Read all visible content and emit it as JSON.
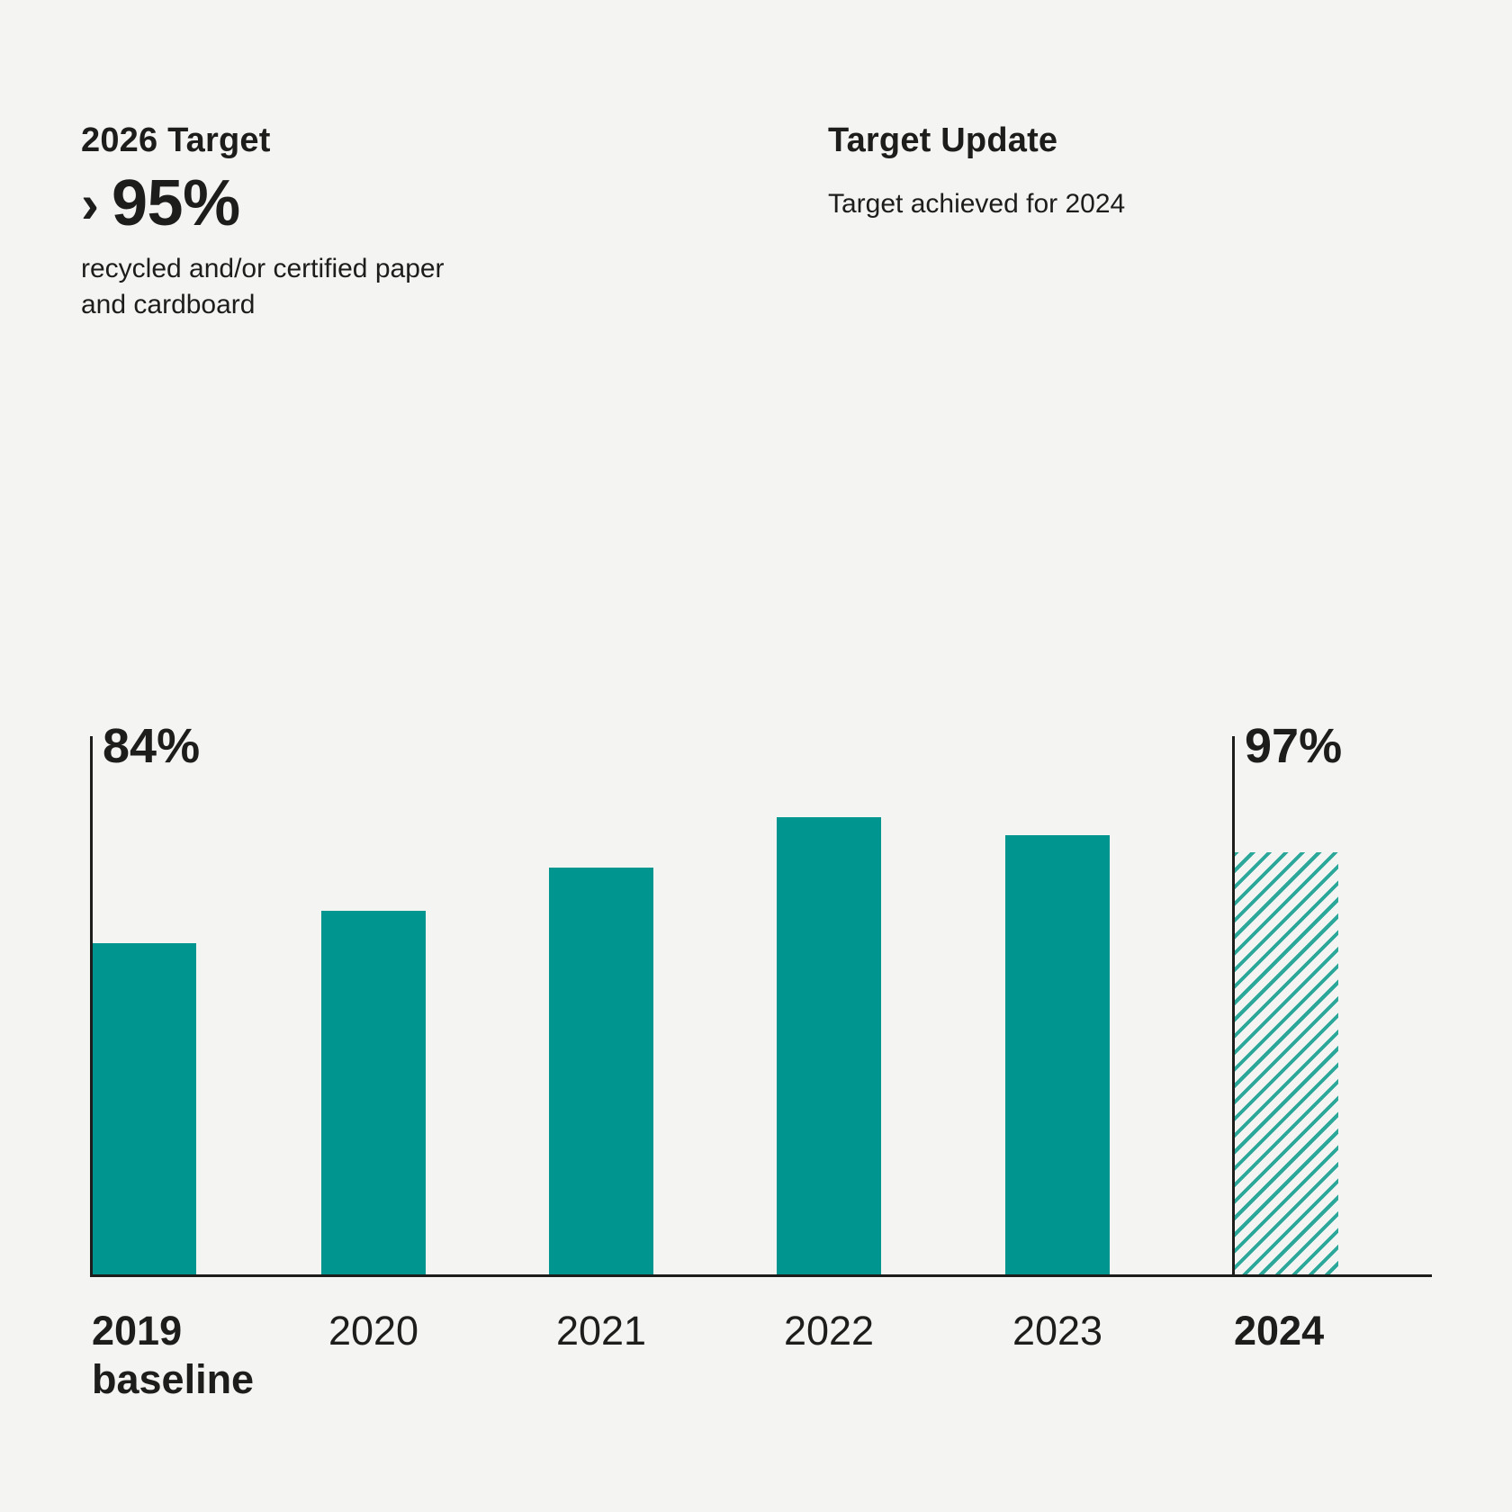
{
  "page": {
    "background": "#f4f4f2",
    "text_color": "#1d1d1b"
  },
  "target_block": {
    "title": "2026 Target",
    "value_prefix": "›",
    "value": "95%",
    "description": "recycled and/or certified paper\nand cardboard"
  },
  "update_block": {
    "title": "Target Update",
    "subtitle": "Target achieved for 2024"
  },
  "chart_data": {
    "type": "bar",
    "title": "",
    "xlabel": "",
    "ylabel": "",
    "unit": "%",
    "grid": false,
    "legend": false,
    "categories": [
      "2019 baseline",
      "2020",
      "2021",
      "2022",
      "2023",
      "2024"
    ],
    "values": [
      84,
      null,
      null,
      null,
      null,
      97
    ],
    "notes": "Only the 2019 baseline bar (84%) and the 2024 bar (97%) carry visible value labels; intermediate bars are unlabeled. The 2024 bar is drawn with a diagonal hatch pattern to mark the target-achieved year.",
    "colors": {
      "bar": "#00958E",
      "hatch_line": "#2CA89B",
      "axis": "#1d1d1b"
    },
    "bars": [
      {
        "year": "2019",
        "sublabel": "baseline",
        "value_label": "84%",
        "height_pct": 61.6,
        "pattern": "solid",
        "tick_bold": true,
        "tick_align": "left"
      },
      {
        "year": "2020",
        "sublabel": "",
        "value_label": "",
        "height_pct": 67.6,
        "pattern": "solid",
        "tick_bold": false,
        "tick_align": "center"
      },
      {
        "year": "2021",
        "sublabel": "",
        "value_label": "",
        "height_pct": 75.6,
        "pattern": "solid",
        "tick_bold": false,
        "tick_align": "center"
      },
      {
        "year": "2022",
        "sublabel": "",
        "value_label": "",
        "height_pct": 85.0,
        "pattern": "solid",
        "tick_bold": false,
        "tick_align": "center"
      },
      {
        "year": "2023",
        "sublabel": "",
        "value_label": "",
        "height_pct": 81.6,
        "pattern": "solid",
        "tick_bold": false,
        "tick_align": "center"
      },
      {
        "year": "2024",
        "sublabel": "",
        "value_label": "97%",
        "height_pct": 78.5,
        "pattern": "hatched",
        "tick_bold": true,
        "tick_align": "left"
      }
    ]
  }
}
